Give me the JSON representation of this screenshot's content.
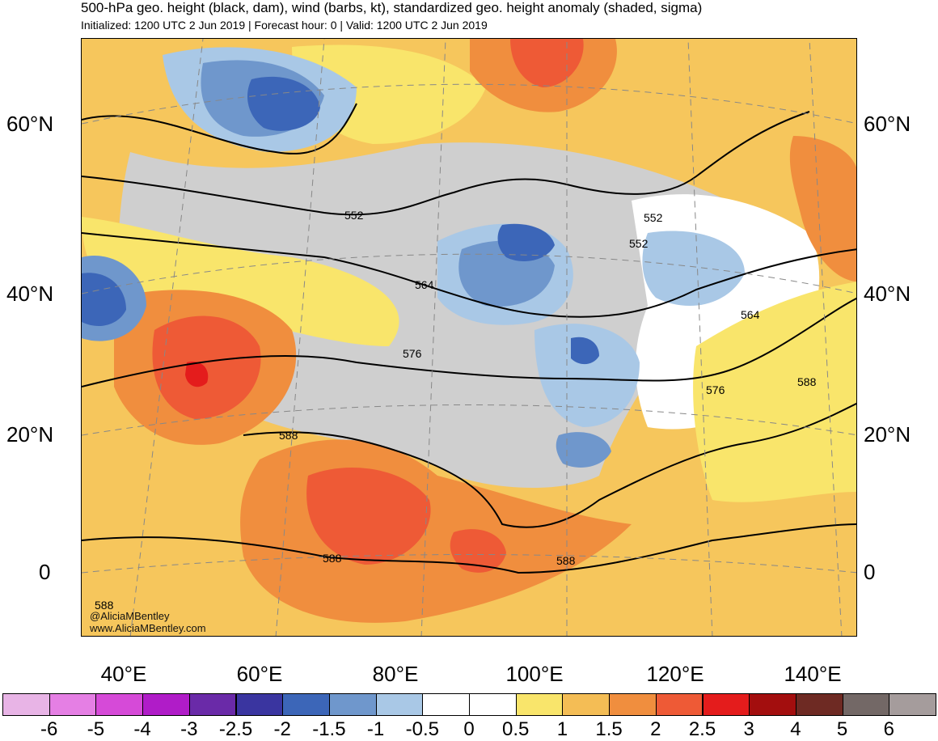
{
  "header": {
    "title": "500-hPa geo. height (black, dam), wind (barbs, kt), standardized geo. height anomaly (shaded, sigma)",
    "subtitle": "Initialized: 1200 UTC 2 Jun 2019 | Forecast hour: 0 | Valid: 1200 UTC 2 Jun 2019"
  },
  "map": {
    "lat_labels": [
      "60°N",
      "40°N",
      "20°N",
      "0"
    ],
    "lon_labels": [
      "40°E",
      "60°E",
      "80°E",
      "100°E",
      "120°E",
      "140°E"
    ],
    "contour_labels": [
      "552",
      "552",
      "552",
      "564",
      "564",
      "576",
      "576",
      "588",
      "588",
      "588",
      "588",
      "588"
    ],
    "credits": [
      "@AliciaMBentley",
      "www.AliciaMBentley.com"
    ]
  },
  "colorbar": {
    "ticks": [
      "-6",
      "-5",
      "-4",
      "-3",
      "-2.5",
      "-2",
      "-1.5",
      "-1",
      "-0.5",
      "0",
      "0.5",
      "1",
      "1.5",
      "2",
      "2.5",
      "3",
      "4",
      "5",
      "6"
    ],
    "colors": [
      "#e8b4e6",
      "#e57fe4",
      "#d64ad8",
      "#b01cc8",
      "#6a2aa8",
      "#3a35a0",
      "#3c66b8",
      "#6f97cc",
      "#a9c8e6",
      "#ffffff",
      "#ffffff",
      "#f9e56b",
      "#f4bd55",
      "#f08e3e",
      "#ee5a36",
      "#e41c1c",
      "#a30e0e",
      "#6e2a23",
      "#736866",
      "#a59c9c"
    ]
  }
}
